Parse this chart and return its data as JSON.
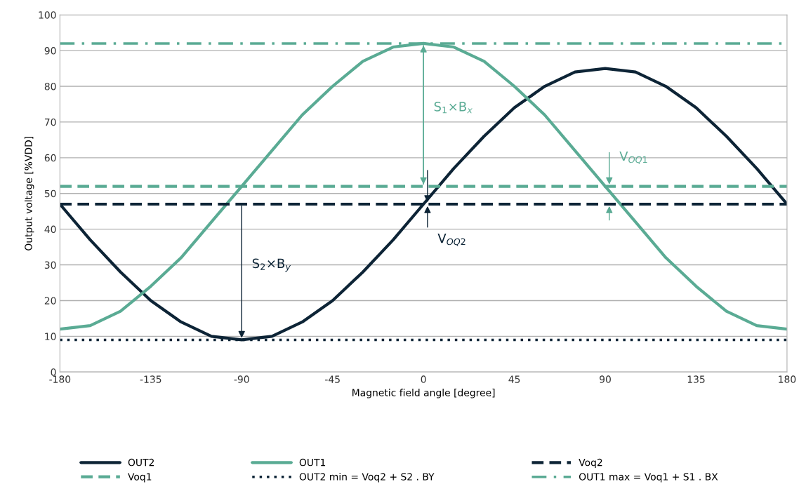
{
  "chart_data": {
    "type": "line",
    "xlabel": "Magnetic field angle [degree]",
    "ylabel": "Output voltage [%VDD]",
    "x": [
      -180,
      -165,
      -150,
      -135,
      -120,
      -105,
      -90,
      -75,
      -60,
      -45,
      -30,
      -15,
      0,
      15,
      30,
      45,
      60,
      75,
      90,
      105,
      120,
      135,
      150,
      165,
      180
    ],
    "series": [
      {
        "name": "OUT2",
        "color": "#0d2436",
        "line_style": "solid",
        "values": [
          47,
          37,
          28,
          20,
          14,
          10,
          9,
          10,
          14,
          20,
          28,
          37,
          47,
          57,
          66,
          74,
          80,
          84,
          85,
          84,
          80,
          74,
          66,
          57,
          47
        ]
      },
      {
        "name": "OUT1",
        "color": "#5aab94",
        "line_style": "solid",
        "values": [
          12,
          13,
          17,
          24,
          32,
          42,
          52,
          62,
          72,
          80,
          87,
          91,
          92,
          91,
          87,
          80,
          72,
          62,
          52,
          42,
          32,
          24,
          17,
          13,
          12
        ]
      },
      {
        "name": "Voq2",
        "color": "#0d2436",
        "line_style": "dashed",
        "values": [
          47,
          47,
          47,
          47,
          47,
          47,
          47,
          47,
          47,
          47,
          47,
          47,
          47,
          47,
          47,
          47,
          47,
          47,
          47,
          47,
          47,
          47,
          47,
          47,
          47
        ]
      },
      {
        "name": "Voq1",
        "color": "#5aab94",
        "line_style": "dashed",
        "values": [
          52,
          52,
          52,
          52,
          52,
          52,
          52,
          52,
          52,
          52,
          52,
          52,
          52,
          52,
          52,
          52,
          52,
          52,
          52,
          52,
          52,
          52,
          52,
          52,
          52
        ]
      },
      {
        "name": "OUT2 min = Voq2 + S2 . BY",
        "color": "#0d2436",
        "line_style": "dotted",
        "values": [
          9,
          9,
          9,
          9,
          9,
          9,
          9,
          9,
          9,
          9,
          9,
          9,
          9,
          9,
          9,
          9,
          9,
          9,
          9,
          9,
          9,
          9,
          9,
          9,
          9
        ]
      },
      {
        "name": "OUT1 max = Voq1 + S1 . BX",
        "color": "#5aab94",
        "line_style": "dashdot",
        "values": [
          92,
          92,
          92,
          92,
          92,
          92,
          92,
          92,
          92,
          92,
          92,
          92,
          92,
          92,
          92,
          92,
          92,
          92,
          92,
          92,
          92,
          92,
          92,
          92,
          92
        ]
      }
    ],
    "annotations": [
      "S$_{1}$×B$_{x}$",
      "S$_{2}$×B$_{y}$",
      {
        "text": "V$_{OQ2}$",
        "x": 0,
        "y": 47
      },
      {
        "text": "V$_{OQ1}$",
        "x": 90,
        "y": 52
      }
    ],
    "xlim": [
      -180,
      180
    ],
    "xticks": [
      -180,
      -135,
      -90,
      -45,
      0,
      45,
      90,
      135,
      180
    ],
    "ylim": [
      0,
      100
    ],
    "yticks": [
      0,
      10,
      20,
      30,
      40,
      50,
      60,
      70,
      80,
      90,
      100
    ],
    "grid": "y",
    "legend": "bottom"
  }
}
